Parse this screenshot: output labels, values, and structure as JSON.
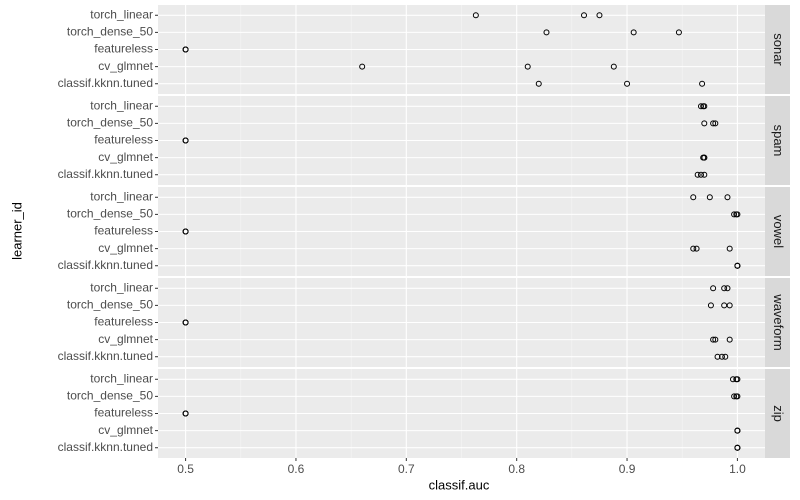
{
  "chart_data": {
    "type": "scatter",
    "x_label": "classif.auc",
    "y_label": "learner_id",
    "categories": [
      "torch_linear",
      "torch_dense_50",
      "featureless",
      "cv_glmnet",
      "classif.kknn.tuned"
    ],
    "xlim": [
      0.475,
      1.025
    ],
    "xticks": [
      0.5,
      0.6,
      0.7,
      0.8,
      0.9,
      {
        "value": 1,
        "label": "1.0"
      }
    ],
    "xticks_minor": [
      0.55,
      0.65,
      0.75,
      0.85,
      0.95
    ],
    "grid": true,
    "color": "#000000",
    "facets": [
      {
        "name": "sonar",
        "values": [
          [
            0.763,
            0.861,
            0.875
          ],
          [
            0.827,
            0.906,
            0.947
          ],
          [
            0.5,
            0.5,
            0.5
          ],
          [
            0.66,
            0.81,
            0.888
          ],
          [
            0.82,
            0.9,
            0.968
          ]
        ]
      },
      {
        "name": "spam",
        "values": [
          [
            0.967,
            0.969,
            0.97
          ],
          [
            0.97,
            0.978,
            0.98
          ],
          [
            0.5,
            0.5,
            0.5
          ],
          [
            0.969,
            0.97,
            0.97
          ],
          [
            0.964,
            0.967,
            0.97
          ]
        ]
      },
      {
        "name": "vowel",
        "values": [
          [
            0.96,
            0.975,
            0.991
          ],
          [
            0.997,
            0.999,
            1
          ],
          [
            0.5,
            0.5,
            0.5
          ],
          [
            0.96,
            0.963,
            0.993
          ],
          [
            1,
            1,
            1
          ]
        ]
      },
      {
        "name": "waveform",
        "values": [
          [
            0.978,
            0.988,
            0.991
          ],
          [
            0.976,
            0.988,
            0.993
          ],
          [
            0.5,
            0.5,
            0.5
          ],
          [
            0.978,
            0.98,
            0.993
          ],
          [
            0.982,
            0.986,
            0.989
          ]
        ]
      },
      {
        "name": "zip",
        "values": [
          [
            0.996,
            0.999,
            1
          ],
          [
            0.997,
            0.999,
            1
          ],
          [
            0.5,
            0.5,
            0.5
          ],
          [
            1,
            1,
            1
          ],
          [
            1,
            1,
            1
          ]
        ]
      }
    ]
  }
}
